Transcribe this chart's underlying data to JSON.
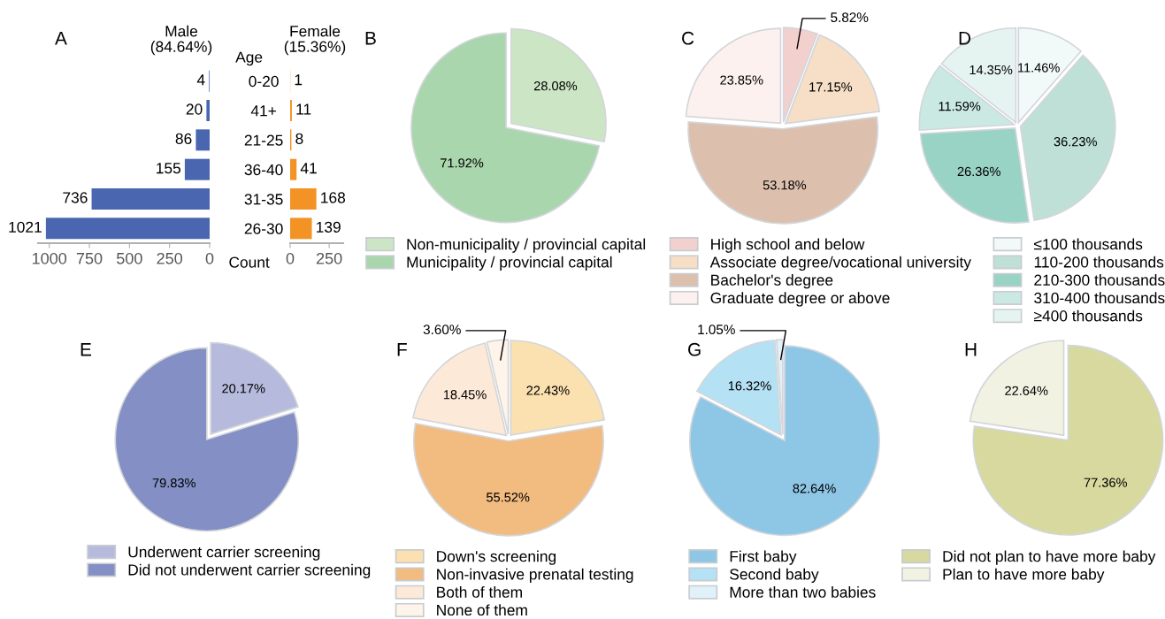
{
  "chart_data": [
    {
      "type": "bar",
      "orientation": "horizontal",
      "title": "Male\n(84.64%)",
      "ylabel": "Age",
      "xlabel": "Count",
      "annotations": [
        "A"
      ],
      "categories": [
        "0-20",
        "41+",
        "21-25",
        "36-40",
        "31-35",
        "26-30"
      ],
      "values": [
        4,
        20,
        86,
        155,
        736,
        1021
      ],
      "color": "#4a66b0",
      "xlim": [
        1070,
        0
      ],
      "xticks": [
        1000,
        750,
        500,
        250,
        0
      ],
      "data_labels": true,
      "grid": false
    },
    {
      "type": "bar",
      "orientation": "horizontal",
      "title": "Female\n(15.36%)",
      "categories": [
        null,
        null,
        null,
        null,
        null,
        null
      ],
      "values": [
        1,
        11,
        8,
        41,
        168,
        139
      ],
      "color": "#f39325",
      "xlim": [
        0,
        340
      ],
      "xticks": [
        0,
        250
      ],
      "tick_labels": "x",
      "data_labels": true,
      "grid": false
    },
    {
      "type": "pie",
      "annotations": [
        "B"
      ],
      "categories": [
        "Non-municipality / provincial capital",
        "Municipality / provincial capital"
      ],
      "values": [
        28.08,
        71.92
      ],
      "value_labels": [
        "28.08%",
        "71.92%"
      ],
      "colors": [
        "#cce5c5",
        "#a9d6ad"
      ],
      "legend": "bottom"
    },
    {
      "type": "pie",
      "annotations": [
        "C"
      ],
      "categories": [
        "High school and below",
        "Associate degree/vocational university",
        "Bachelor's degree",
        "Graduate degree or above"
      ],
      "values": [
        5.82,
        17.15,
        53.18,
        23.85
      ],
      "value_labels": [
        "5.82%",
        "17.15%",
        "53.18%",
        "23.85%"
      ],
      "colors": [
        "#f2d0cd",
        "#f6dfc6",
        "#dcc0ad",
        "#fcf1ee"
      ],
      "legend": "bottom"
    },
    {
      "type": "pie",
      "annotations": [
        "D"
      ],
      "categories": [
        "≤100 thousands",
        "110-200 thousands",
        "210-300 thousands",
        "310-400 thousands",
        "≥400 thousands"
      ],
      "values": [
        11.46,
        36.23,
        26.36,
        11.59,
        14.35
      ],
      "value_labels": [
        "11.46%",
        "36.23%",
        "26.36%",
        "11.59%",
        "14.35%"
      ],
      "colors": [
        "#f2f9f9",
        "#bfe0d6",
        "#98d3c5",
        "#cbe9e3",
        "#e6f4f1"
      ],
      "legend": "bottom"
    },
    {
      "type": "pie",
      "annotations": [
        "E"
      ],
      "categories": [
        "Underwent carrier screening",
        "Did not underwent carrier screening"
      ],
      "values": [
        20.17,
        79.83
      ],
      "value_labels": [
        "20.17%",
        "79.83%"
      ],
      "colors": [
        "#b6badc",
        "#838fc5"
      ],
      "legend": "bottom"
    },
    {
      "type": "pie",
      "annotations": [
        "F"
      ],
      "categories": [
        "Down's screening",
        "Non-invasive prenatal testing",
        "Both of them",
        "None of them"
      ],
      "values": [
        22.43,
        55.52,
        18.45,
        3.6
      ],
      "value_labels": [
        "22.43%",
        "55.52%",
        "18.45%",
        "3.60%"
      ],
      "colors": [
        "#fbe0b0",
        "#f2bb80",
        "#fde9d7",
        "#fef4ea"
      ],
      "legend": "bottom"
    },
    {
      "type": "pie",
      "annotations": [
        "G"
      ],
      "categories": [
        "First baby",
        "Second baby",
        "More than two babies"
      ],
      "values": [
        82.64,
        16.32,
        1.05
      ],
      "value_labels": [
        "82.64%",
        "16.32%",
        "1.05%"
      ],
      "colors": [
        "#8ec6e6",
        "#b5e1f5",
        "#e0f1fa"
      ],
      "legend": "bottom"
    },
    {
      "type": "pie",
      "annotations": [
        "H"
      ],
      "categories": [
        "Did not plan to have more baby",
        "Plan to have more baby"
      ],
      "values": [
        77.36,
        22.64
      ],
      "value_labels": [
        "77.36%",
        "22.64%"
      ],
      "colors": [
        "#d7d99e",
        "#f2f2e3"
      ],
      "legend": "bottom"
    }
  ]
}
